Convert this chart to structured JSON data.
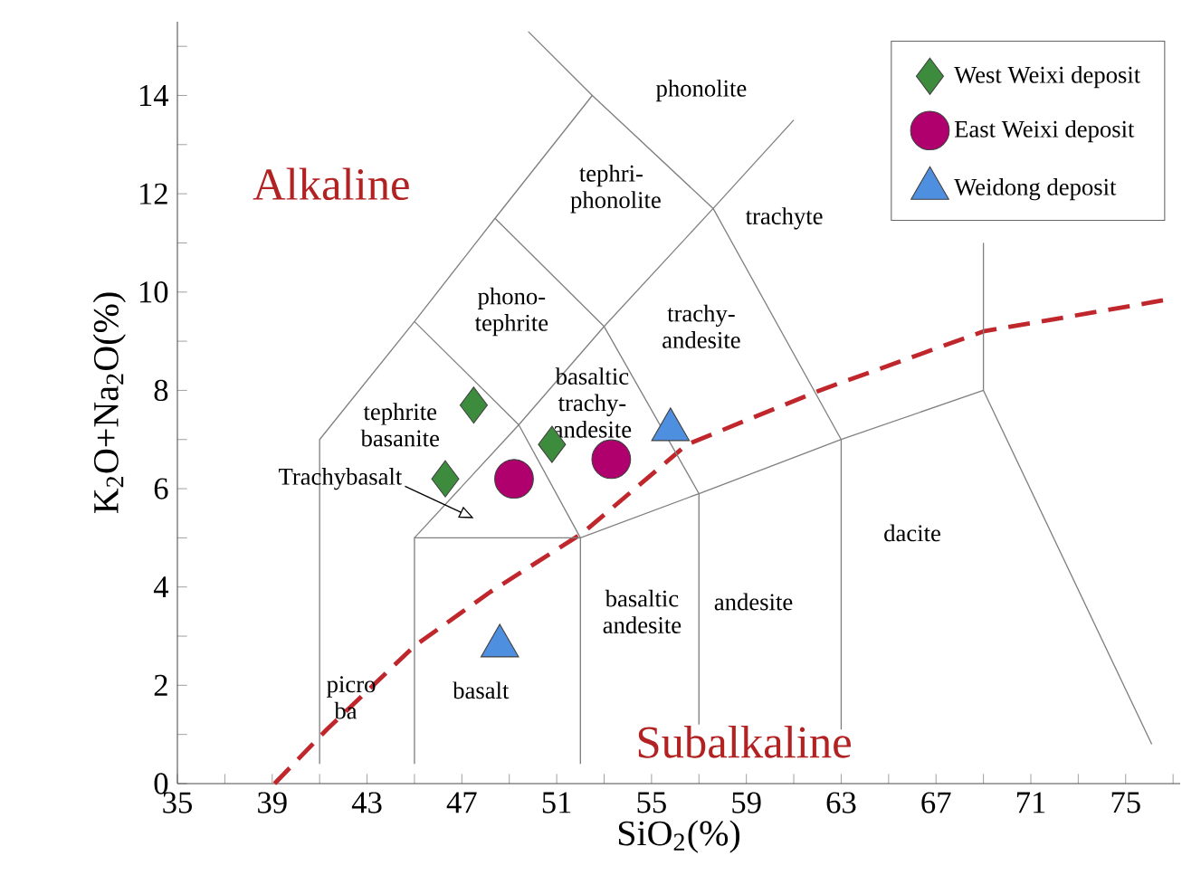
{
  "chart_data": {
    "type": "scatter",
    "xlabel": "SiO$_{2}$(%)",
    "ylabel": "K$_{2}$O+Na$_{2}$O(%)",
    "xlim": [
      35,
      77.3
    ],
    "ylim": [
      0,
      15.5
    ],
    "xticks": [
      35,
      {
        "value": 37,
        "label": null
      },
      39,
      {
        "value": 41,
        "label": null
      },
      43,
      {
        "value": 45,
        "label": null
      },
      47,
      {
        "value": 49,
        "label": null
      },
      51,
      {
        "value": 53,
        "label": null
      },
      55,
      {
        "value": 57,
        "label": null
      },
      59,
      {
        "value": 61,
        "label": null
      },
      63,
      {
        "value": 65,
        "label": null
      },
      67,
      {
        "value": 69,
        "label": null
      },
      71,
      {
        "value": 73,
        "label": null
      },
      75,
      {
        "value": 77,
        "label": null
      }
    ],
    "yticks": [
      0,
      {
        "value": 1,
        "label": null
      },
      2,
      {
        "value": 3,
        "label": null
      },
      4,
      {
        "value": 5,
        "label": null
      },
      6,
      {
        "value": 7,
        "label": null
      },
      8,
      {
        "value": 9,
        "label": null
      },
      10,
      {
        "value": 11,
        "label": null
      },
      12,
      {
        "value": 13,
        "label": null
      },
      14,
      {
        "value": 15,
        "label": null
      }
    ],
    "legend": "top right",
    "grid": false,
    "series": [
      {
        "name": "West Weixi deposit",
        "marker": "diamond",
        "color": "#3d8b3d",
        "x": [
          47.5,
          46.3,
          50.8
        ],
        "values": [
          7.7,
          6.2,
          6.9
        ]
      },
      {
        "name": "East Weixi deposit",
        "marker": "circle",
        "color": "#b0006e",
        "x": [
          49.2,
          53.3
        ],
        "values": [
          6.2,
          6.6
        ]
      },
      {
        "name": "Weidong deposit",
        "marker": "triangle",
        "color": "#4f8fe0",
        "x": [
          55.8,
          48.6
        ],
        "values": [
          7.2,
          2.8
        ]
      },
      {
        "type": "line",
        "color": "#c0272d",
        "line_style": "dashed",
        "x": [
          39.1,
          41.3,
          45.0,
          48.2,
          52.1,
          56.5,
          62.1,
          69.0,
          76.8
        ],
        "values": [
          0,
          1.1,
          2.8,
          3.9,
          5.1,
          6.9,
          8.0,
          9.2,
          9.85
        ]
      },
      {
        "type": "line",
        "color": "#808080",
        "x": [
          41,
          41,
          45,
          48.4,
          52.5,
          57.6,
          63,
          63
        ],
        "values": [
          0.4,
          7,
          9.4,
          11.5,
          14,
          11.7,
          7,
          1.1
        ]
      },
      {
        "type": "line",
        "color": "#808080",
        "x": [
          49.8,
          52.5
        ],
        "values": [
          15.3,
          14
        ]
      },
      {
        "type": "line",
        "color": "#808080",
        "x": [
          45,
          45,
          52,
          52
        ],
        "values": [
          0.4,
          5,
          5,
          0.4
        ]
      },
      {
        "type": "line",
        "color": "#808080",
        "x": [
          45,
          49.4,
          52,
          57,
          63,
          69,
          76.1
        ],
        "values": [
          5,
          7.3,
          5,
          5.9,
          7,
          8,
          0.8
        ]
      },
      {
        "type": "line",
        "color": "#808080",
        "x": [
          45,
          49.4
        ],
        "values": [
          9.4,
          7.3
        ]
      },
      {
        "type": "line",
        "color": "#808080",
        "x": [
          48.4,
          53,
          57,
          57
        ],
        "values": [
          11.5,
          9.3,
          5.9,
          1.2
        ]
      },
      {
        "type": "line",
        "color": "#808080",
        "x": [
          49.4,
          53,
          57.6,
          61
        ],
        "values": [
          7.3,
          9.3,
          11.7,
          13.5
        ]
      },
      {
        "type": "line",
        "color": "#808080",
        "x": [
          69,
          69
        ],
        "values": [
          8,
          11
        ]
      }
    ],
    "annotations": [
      "phonolite",
      "tephri-phonolite",
      "trachyte",
      "phono-tephrite",
      "trachy-andesite",
      "tephrite basanite",
      "basaltic trachy-andesite",
      "Trachybasalt",
      "dacite",
      "basaltic andesite",
      "andesite",
      "basalt",
      "picro ba",
      "Alkaline",
      "Subalkaline"
    ]
  }
}
